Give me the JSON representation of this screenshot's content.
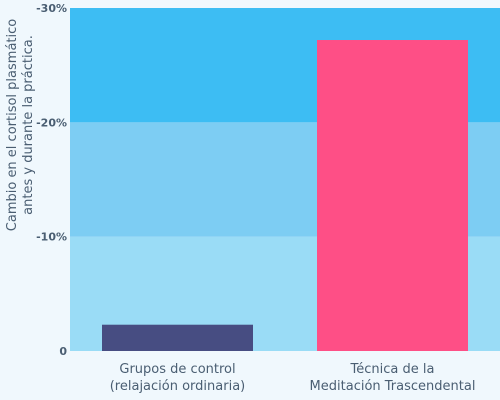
{
  "chart_data": {
    "type": "bar",
    "ylabel_lines": [
      "Cambio en el cortisol plasmático",
      "antes y durante la práctica."
    ],
    "ylim": [
      0,
      -30
    ],
    "y_ticks": [
      {
        "value": 0,
        "label": "0"
      },
      {
        "value": -10,
        "label": "-10%"
      },
      {
        "value": -20,
        "label": "-20%"
      },
      {
        "value": -30,
        "label": "-30%"
      }
    ],
    "bands": [
      {
        "from": 0,
        "to": -10,
        "color": "#9adcf6"
      },
      {
        "from": -10,
        "to": -20,
        "color": "#7dcdf3"
      },
      {
        "from": -20,
        "to": -30,
        "color": "#3dbdf3"
      }
    ],
    "categories": [
      {
        "lines": [
          "Grupos de control",
          "(relajación ordinaria)"
        ],
        "value": -2.3,
        "color": "#474d82"
      },
      {
        "lines": [
          "Técnica de la",
          "Meditación Trascendental"
        ],
        "value": -27.2,
        "color": "#fe4f86"
      }
    ],
    "grid": false,
    "legend": "none"
  }
}
